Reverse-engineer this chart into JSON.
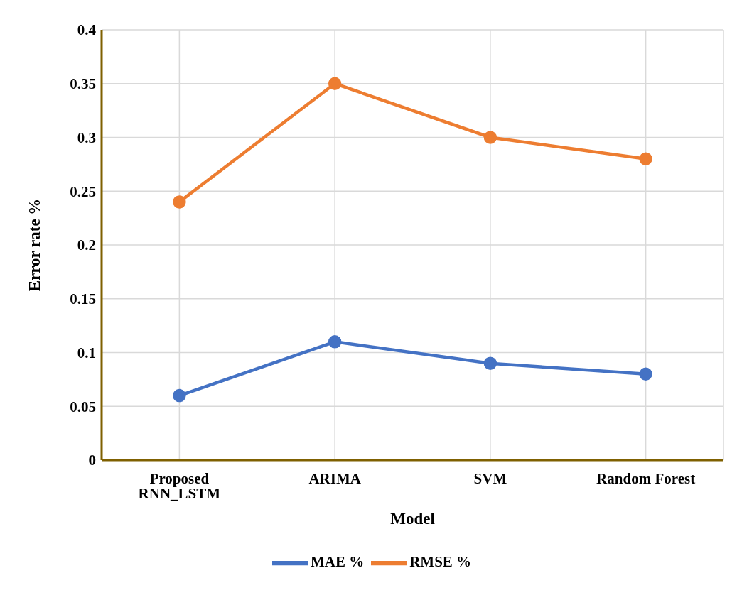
{
  "chart_data": {
    "type": "line",
    "xlabel": "Model",
    "ylabel": "Error rate %",
    "categories": [
      "Proposed RNN_LSTM",
      "ARIMA",
      "SVM",
      "Random Forest"
    ],
    "series": [
      {
        "name": "MAE %",
        "color": "#4472c4",
        "values": [
          0.06,
          0.11,
          0.09,
          0.08
        ]
      },
      {
        "name": "RMSE %",
        "color": "#ed7d31",
        "values": [
          0.24,
          0.35,
          0.3,
          0.28
        ]
      }
    ],
    "ylim": [
      0,
      0.4
    ],
    "yticks": [
      0,
      0.05,
      0.1,
      0.15,
      0.2,
      0.25,
      0.3,
      0.35,
      0.4
    ],
    "grid": true,
    "legend": "bottom",
    "marker": "circle",
    "line_style": "solid"
  }
}
